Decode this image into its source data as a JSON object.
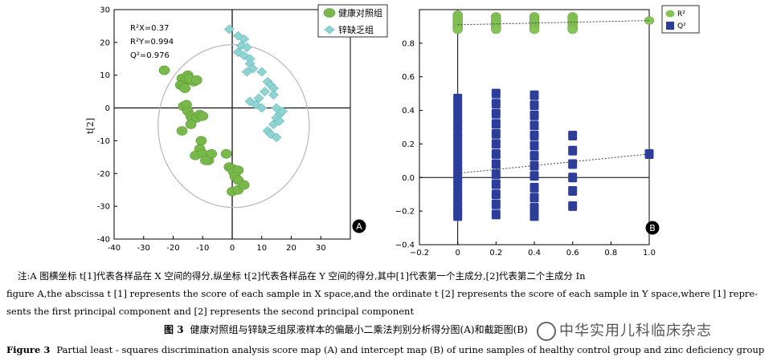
{
  "chart_data": [
    {
      "type": "scatter",
      "panel_label": "A",
      "xlabel": "t[1]",
      "ylabel": "t[2]",
      "xlim": [
        -40,
        40
      ],
      "ylim": [
        -40,
        30
      ],
      "xticks": [
        -40,
        -30,
        -20,
        -10,
        0,
        10,
        20,
        30
      ],
      "yticks": [
        -40,
        -30,
        -20,
        -10,
        0,
        10,
        20,
        30
      ],
      "stats": [
        "R²X=0.37",
        "R²Y=0.994",
        "Q²=0.976"
      ],
      "colors": {
        "healthy": "#79b84a",
        "zinc": "#8fd3d3"
      },
      "series": [
        {
          "name": "健康对照组",
          "marker": "ellipse",
          "points": [
            [
              -23,
              11.5
            ],
            [
              -17,
              9
            ],
            [
              -16,
              8
            ],
            [
              -17.5,
              7
            ],
            [
              -16.5,
              6.5
            ],
            [
              -13,
              8
            ],
            [
              -15,
              10
            ],
            [
              -14.5,
              9
            ],
            [
              -12,
              8.5
            ],
            [
              -16,
              6
            ],
            [
              -16.5,
              0.5
            ],
            [
              -15.5,
              1
            ],
            [
              -15,
              -1
            ],
            [
              -14,
              -2.5
            ],
            [
              -13.5,
              -3.5
            ],
            [
              -12,
              -3
            ],
            [
              -11,
              -2
            ],
            [
              -10,
              -2.5
            ],
            [
              -17,
              -7
            ],
            [
              -14,
              -5
            ],
            [
              -10.5,
              -10
            ],
            [
              -11,
              -12.5
            ],
            [
              -12.5,
              -14.5
            ],
            [
              -10,
              -14
            ],
            [
              -8,
              -16
            ],
            [
              -7,
              -14
            ],
            [
              -9,
              -16
            ],
            [
              -2,
              -14
            ],
            [
              -1,
              -18
            ],
            [
              0,
              -18.5
            ],
            [
              0.5,
              -19.5
            ],
            [
              2,
              -19
            ],
            [
              1,
              -21
            ],
            [
              2,
              -22
            ],
            [
              0,
              -25.5
            ],
            [
              2,
              -25
            ],
            [
              4,
              -23.5
            ]
          ]
        },
        {
          "name": "锌缺乏组",
          "marker": "diamond",
          "points": [
            [
              -1,
              24
            ],
            [
              2,
              22
            ],
            [
              4,
              21
            ],
            [
              3,
              19
            ],
            [
              5,
              18.5
            ],
            [
              2,
              17
            ],
            [
              4,
              16
            ],
            [
              6,
              15
            ],
            [
              6,
              13.5
            ],
            [
              7,
              12
            ],
            [
              5,
              11
            ],
            [
              10,
              11
            ],
            [
              12,
              8
            ],
            [
              13,
              7
            ],
            [
              14,
              6
            ],
            [
              11,
              5
            ],
            [
              9,
              3
            ],
            [
              14,
              4
            ],
            [
              6,
              2
            ],
            [
              8,
              1
            ],
            [
              10,
              0
            ],
            [
              15,
              0
            ],
            [
              16,
              -2
            ],
            [
              17,
              -1
            ],
            [
              15,
              -3
            ],
            [
              16,
              -4
            ],
            [
              14,
              -5
            ],
            [
              12,
              -7
            ],
            [
              13,
              -8
            ],
            [
              15,
              -9
            ]
          ]
        }
      ]
    },
    {
      "type": "scatter",
      "panel_label": "B",
      "xlim": [
        -0.2,
        1.0
      ],
      "ylim": [
        -0.4,
        1.0
      ],
      "xticks": [
        -0.2,
        0,
        0.2,
        0.4,
        0.6,
        0.8,
        1.0
      ],
      "yticks": [
        -0.4,
        -0.2,
        0,
        0.2,
        0.4,
        0.6,
        0.8
      ],
      "xtick_labels": [
        "−0.2",
        "0",
        "0.2",
        "0.4",
        "0.6",
        "0.8",
        "1.0"
      ],
      "ytick_labels": [
        "−0.4",
        "−0.2",
        "0.0",
        "0.2",
        "0.4",
        "0.6",
        "0.8"
      ],
      "colors": {
        "R2": "#86c45a",
        "Q2": "#2c3d9a"
      },
      "series": [
        {
          "name": "R²",
          "marker": "ellipse",
          "points": [
            [
              0,
              0.97
            ],
            [
              0,
              0.96
            ],
            [
              0,
              0.95
            ],
            [
              0,
              0.94
            ],
            [
              0,
              0.93
            ],
            [
              0,
              0.92
            ],
            [
              0,
              0.91
            ],
            [
              0,
              0.9
            ],
            [
              0,
              0.89
            ],
            [
              0,
              0.88
            ],
            [
              0.2,
              0.96
            ],
            [
              0.2,
              0.95
            ],
            [
              0.2,
              0.94
            ],
            [
              0.2,
              0.93
            ],
            [
              0.2,
              0.92
            ],
            [
              0.2,
              0.91
            ],
            [
              0.2,
              0.9
            ],
            [
              0.2,
              0.89
            ],
            [
              0.2,
              0.88
            ],
            [
              0.4,
              0.96
            ],
            [
              0.4,
              0.95
            ],
            [
              0.4,
              0.94
            ],
            [
              0.4,
              0.93
            ],
            [
              0.4,
              0.92
            ],
            [
              0.4,
              0.91
            ],
            [
              0.4,
              0.9
            ],
            [
              0.4,
              0.89
            ],
            [
              0.4,
              0.88
            ],
            [
              0.6,
              0.96
            ],
            [
              0.6,
              0.95
            ],
            [
              0.6,
              0.94
            ],
            [
              0.6,
              0.93
            ],
            [
              0.6,
              0.92
            ],
            [
              0.6,
              0.91
            ],
            [
              0.6,
              0.9
            ],
            [
              0.6,
              0.89
            ],
            [
              0.6,
              0.88
            ],
            [
              1.0,
              0.935
            ]
          ]
        },
        {
          "name": "Q²",
          "marker": "square",
          "points": [
            [
              0,
              0.47
            ],
            [
              0,
              0.43
            ],
            [
              0,
              0.39
            ],
            [
              0,
              0.35
            ],
            [
              0,
              0.31
            ],
            [
              0,
              0.27
            ],
            [
              0,
              0.23
            ],
            [
              0,
              0.19
            ],
            [
              0,
              0.15
            ],
            [
              0,
              0.11
            ],
            [
              0,
              0.07
            ],
            [
              0,
              0.03
            ],
            [
              0,
              -0.01
            ],
            [
              0,
              -0.05
            ],
            [
              0,
              -0.09
            ],
            [
              0,
              -0.13
            ],
            [
              0,
              -0.17
            ],
            [
              0,
              -0.21
            ],
            [
              0,
              -0.23
            ],
            [
              0.2,
              0.5
            ],
            [
              0.2,
              0.44
            ],
            [
              0.2,
              0.38
            ],
            [
              0.2,
              0.32
            ],
            [
              0.2,
              0.26
            ],
            [
              0.2,
              0.2
            ],
            [
              0.2,
              0.14
            ],
            [
              0.2,
              0.08
            ],
            [
              0.2,
              0.02
            ],
            [
              0.2,
              -0.04
            ],
            [
              0.2,
              -0.1
            ],
            [
              0.2,
              -0.16
            ],
            [
              0.2,
              -0.22
            ],
            [
              0.4,
              0.49
            ],
            [
              0.4,
              0.43
            ],
            [
              0.4,
              0.37
            ],
            [
              0.4,
              0.31
            ],
            [
              0.4,
              0.25
            ],
            [
              0.4,
              0.19
            ],
            [
              0.4,
              0.13
            ],
            [
              0.4,
              0.07
            ],
            [
              0.4,
              0.01
            ],
            [
              0.4,
              -0.06
            ],
            [
              0.4,
              -0.12
            ],
            [
              0.4,
              -0.18
            ],
            [
              0.4,
              -0.23
            ],
            [
              0.6,
              0.25
            ],
            [
              0.6,
              0.16
            ],
            [
              0.6,
              0.08
            ],
            [
              0.6,
              0.0
            ],
            [
              0.6,
              -0.08
            ],
            [
              0.6,
              -0.17
            ],
            [
              1.0,
              0.14
            ]
          ]
        }
      ],
      "regression_lines": [
        {
          "name": "R²",
          "from": [
            0,
            0.91
          ],
          "to": [
            1.0,
            0.935
          ]
        },
        {
          "name": "Q²",
          "from": [
            0,
            0.025
          ],
          "to": [
            1.0,
            0.14
          ]
        }
      ]
    }
  ],
  "caption": {
    "note_cn": "注:A 图横坐标 t[1]代表各样品在 X 空间的得分,纵坐标 t[2]代表各样品在 Y 空间的得分,其中[1]代表第一个主成分,[2]代表第二个主成分   In",
    "note_en1": "figure A,the abscissa t [1] represents the score of each sample in X space,and the ordinate t [2] represents the score of each sample in Y space,where [1] repre-",
    "note_en2": "sents the first principal component and [2] represents the second principal component",
    "title_cn_label": "图 3",
    "title_cn": "健康对照组与锌缺乏组尿液样本的偏最小二乘法判别分析得分图(A)和截距图(B)",
    "title_en_label": "Figure 3",
    "title_en": "Partial least - squares discrimination analysis score map (A) and intercept map (B) of urine samples of healthy control group and zinc deficiency group"
  },
  "watermark": "中华实用儿科临床杂志"
}
